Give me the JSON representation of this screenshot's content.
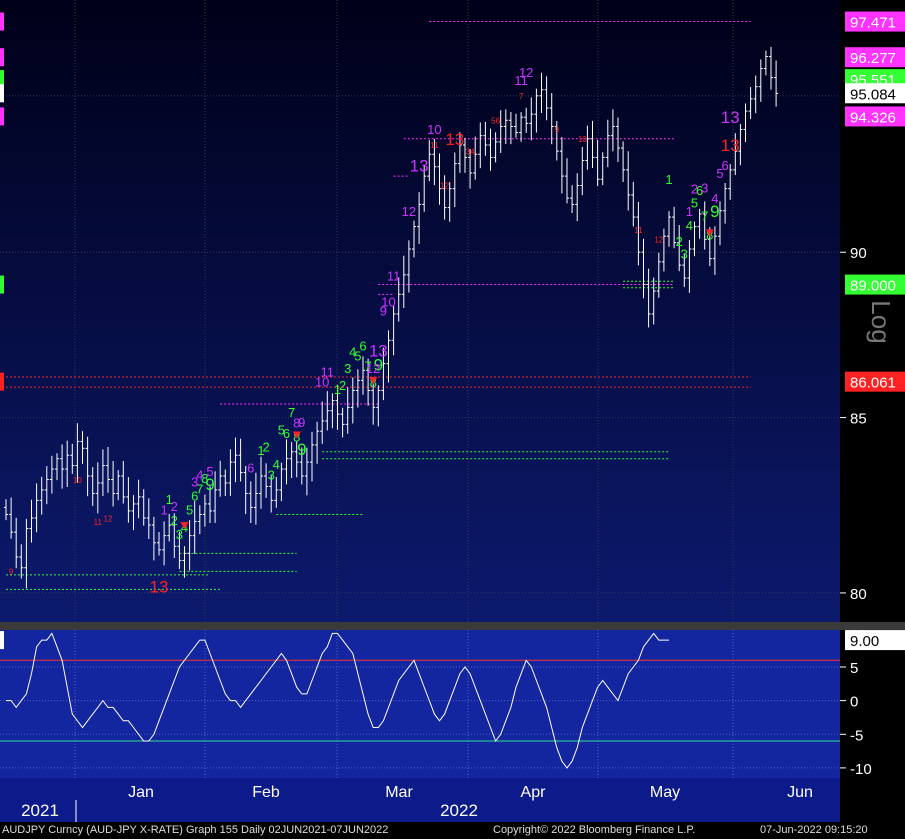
{
  "chart_data": {
    "type": "line",
    "price_panel": {
      "series_type": "candlestick",
      "y_ticks": [
        80,
        85,
        90
      ],
      "ylim": [
        79.2,
        98.2
      ],
      "axis_badges": [
        {
          "value": 97.471,
          "label": "97.471",
          "color": "#ff33ff"
        },
        {
          "value": 96.277,
          "label": "96.277",
          "color": "#ff33ff"
        },
        {
          "value": 95.551,
          "label": "95.551",
          "color": "#33ff33"
        },
        {
          "value": 95.084,
          "label": "95.084",
          "color": "#ffffff"
        },
        {
          "value": 94.326,
          "label": "94.326",
          "color": "#ff33ff"
        },
        {
          "value": 89.0,
          "label": "89.000",
          "color": "#33ff33"
        },
        {
          "value": 86.061,
          "label": "86.061",
          "color": "#ff2222"
        }
      ],
      "side_text": "Log",
      "closes": [
        82.2,
        81.7,
        81.0,
        80.7,
        81.8,
        82.1,
        82.6,
        82.9,
        83.2,
        83.5,
        83.8,
        83.5,
        83.9,
        83.6,
        84.3,
        84.1,
        83.3,
        82.8,
        83.1,
        83.6,
        83.2,
        82.8,
        83.3,
        82.7,
        82.3,
        82.5,
        82.7,
        82.1,
        81.9,
        81.4,
        81.2,
        81.6,
        81.9,
        81.3,
        80.9,
        81.1,
        81.6,
        82.0,
        82.2,
        82.5,
        82.3,
        82.9,
        83.3,
        83.1,
        83.7,
        83.9,
        83.4,
        82.8,
        82.4,
        82.8,
        83.3,
        83.0,
        82.6,
        82.9,
        83.5,
        83.8,
        84.0,
        83.7,
        83.3,
        83.7,
        84.2,
        84.6,
        84.9,
        85.2,
        85.5,
        85.1,
        84.8,
        85.3,
        85.8,
        86.1,
        86.4,
        85.8,
        85.3,
        85.8,
        86.6,
        87.3,
        88.1,
        88.7,
        89.3,
        90.1,
        90.8,
        91.5,
        92.4,
        93.1,
        92.7,
        92.0,
        91.4,
        92.0,
        92.8,
        93.4,
        93.0,
        92.5,
        93.1,
        93.7,
        93.4,
        93.0,
        93.5,
        94.0,
        94.2,
        94.0,
        93.8,
        94.3,
        94.1,
        94.4,
        95.0,
        95.2,
        94.6,
        94.0,
        93.2,
        92.4,
        91.7,
        91.5,
        92.1,
        92.9,
        93.6,
        93.0,
        92.3,
        93.0,
        93.7,
        94.0,
        93.3,
        92.6,
        91.8,
        91.1,
        90.0,
        89.0,
        88.1,
        88.8,
        89.7,
        90.5,
        91.1,
        90.3,
        89.6,
        89.2,
        90.1,
        90.8,
        91.2,
        90.4,
        89.8,
        90.5,
        91.3,
        92.0,
        92.6,
        93.2,
        93.9,
        94.5,
        94.9,
        95.3,
        95.9,
        96.3,
        95.6,
        95.08
      ],
      "labels": [
        {
          "i": 1,
          "text": "9",
          "color": "#ff2222",
          "size": 8,
          "pos": "below"
        },
        {
          "i": 14,
          "text": "10",
          "color": "#ff2222",
          "size": 8,
          "pos": "below"
        },
        {
          "i": 18,
          "text": "11",
          "color": "#ff2222",
          "size": 8,
          "pos": "below"
        },
        {
          "i": 20,
          "text": "12",
          "color": "#ff2222",
          "size": 8,
          "pos": "below"
        },
        {
          "i": 30,
          "text": "13",
          "color": "#ff2222",
          "size": 17,
          "pos": "below"
        },
        {
          "i": 32,
          "text": "1",
          "color": "#33ff33",
          "size": 13,
          "pos": "above"
        },
        {
          "i": 33,
          "text": "2",
          "color": "#33ff33",
          "size": 13,
          "pos": "above"
        },
        {
          "i": 34,
          "text": "3",
          "color": "#33ff33",
          "size": 13,
          "pos": "above"
        },
        {
          "i": 35,
          "text": "4",
          "color": "#33ff33",
          "size": 13,
          "pos": "above"
        },
        {
          "i": 36,
          "text": "5",
          "color": "#33ff33",
          "size": 13,
          "pos": "above"
        },
        {
          "i": 37,
          "text": "6",
          "color": "#33ff33",
          "size": 13,
          "pos": "above"
        },
        {
          "i": 38,
          "text": "7",
          "color": "#33ff33",
          "size": 13,
          "pos": "above"
        },
        {
          "i": 39,
          "text": "8",
          "color": "#33ff33",
          "size": 13,
          "pos": "above"
        },
        {
          "i": 40,
          "text": "9",
          "color": "#33ff33",
          "size": 17,
          "pos": "above"
        },
        {
          "i": 31,
          "text": "1",
          "color": "#cc33ff",
          "size": 13,
          "pos": "above"
        },
        {
          "i": 33,
          "text": "2",
          "color": "#cc33ff",
          "size": 13,
          "pos": "above2"
        },
        {
          "i": 37,
          "text": "3",
          "color": "#cc33ff",
          "size": 13,
          "pos": "above2"
        },
        {
          "i": 38,
          "text": "4",
          "color": "#cc33ff",
          "size": 13,
          "pos": "above2"
        },
        {
          "i": 40,
          "text": "5",
          "color": "#cc33ff",
          "size": 13,
          "pos": "above2"
        },
        {
          "i": 48,
          "text": "6",
          "color": "#cc33ff",
          "size": 13,
          "pos": "above2"
        },
        {
          "i": 50,
          "text": "1",
          "color": "#33ff33",
          "size": 13,
          "pos": "above"
        },
        {
          "i": 51,
          "text": "2",
          "color": "#33ff33",
          "size": 13,
          "pos": "above2"
        },
        {
          "i": 52,
          "text": "3",
          "color": "#33ff33",
          "size": 13,
          "pos": "above"
        },
        {
          "i": 53,
          "text": "4",
          "color": "#33ff33",
          "size": 13,
          "pos": "above"
        },
        {
          "i": 54,
          "text": "5",
          "color": "#33ff33",
          "size": 13,
          "pos": "above2"
        },
        {
          "i": 55,
          "text": "6",
          "color": "#33ff33",
          "size": 13,
          "pos": "above"
        },
        {
          "i": 56,
          "text": "7",
          "color": "#33ff33",
          "size": 13,
          "pos": "above2"
        },
        {
          "i": 57,
          "text": "8",
          "color": "#33ff33",
          "size": 13,
          "pos": "above"
        },
        {
          "i": 58,
          "text": "9",
          "color": "#33ff33",
          "size": 17,
          "pos": "above"
        },
        {
          "i": 57,
          "text": "8",
          "color": "#cc33ff",
          "size": 13,
          "pos": "above2"
        },
        {
          "i": 58,
          "text": "9",
          "color": "#cc33ff",
          "size": 13,
          "pos": "above3"
        },
        {
          "i": 62,
          "text": "10",
          "color": "#cc33ff",
          "size": 13,
          "pos": "above2"
        },
        {
          "i": 63,
          "text": "11",
          "color": "#cc33ff",
          "size": 13,
          "pos": "above2"
        },
        {
          "i": 65,
          "text": "1",
          "color": "#33ff33",
          "size": 13,
          "pos": "above"
        },
        {
          "i": 66,
          "text": "2",
          "color": "#33ff33",
          "size": 13,
          "pos": "above2"
        },
        {
          "i": 67,
          "text": "3",
          "color": "#33ff33",
          "size": 13,
          "pos": "above2"
        },
        {
          "i": 68,
          "text": "4",
          "color": "#33ff33",
          "size": 13,
          "pos": "above2"
        },
        {
          "i": 69,
          "text": "5",
          "color": "#33ff33",
          "size": 13,
          "pos": "above"
        },
        {
          "i": 70,
          "text": "6",
          "color": "#33ff33",
          "size": 13,
          "pos": "above"
        },
        {
          "i": 71,
          "text": "7",
          "color": "#33ff33",
          "size": 13,
          "pos": "above"
        },
        {
          "i": 72,
          "text": "8",
          "color": "#33ff33",
          "size": 13,
          "pos": "above"
        },
        {
          "i": 73,
          "text": "9",
          "color": "#33ff33",
          "size": 17,
          "pos": "above"
        },
        {
          "i": 72,
          "text": "12",
          "color": "#cc33ff",
          "size": 13,
          "pos": "above2"
        },
        {
          "i": 73,
          "text": "13",
          "color": "#cc33ff",
          "size": 17,
          "pos": "above2"
        },
        {
          "i": 74,
          "text": "9",
          "color": "#cc33ff",
          "size": 13,
          "pos": "above3"
        },
        {
          "i": 75,
          "text": "10",
          "color": "#cc33ff",
          "size": 13,
          "pos": "above2"
        },
        {
          "i": 76,
          "text": "11",
          "color": "#cc33ff",
          "size": 13,
          "pos": "above2"
        },
        {
          "i": 79,
          "text": "12",
          "color": "#cc33ff",
          "size": 13,
          "pos": "above2"
        },
        {
          "i": 81,
          "text": "13",
          "color": "#cc33ff",
          "size": 17,
          "pos": "above2"
        },
        {
          "i": 84,
          "text": "10",
          "color": "#cc33ff",
          "size": 13,
          "pos": "above2"
        },
        {
          "i": 84,
          "text": "11",
          "color": "#ff2222",
          "size": 8,
          "pos": "above"
        },
        {
          "i": 86,
          "text": "12",
          "color": "#ff2222",
          "size": 8,
          "pos": "above"
        },
        {
          "i": 88,
          "text": "13",
          "color": "#ff2222",
          "size": 17,
          "pos": "above"
        },
        {
          "i": 91,
          "text": "34",
          "color": "#ff2222",
          "size": 8,
          "pos": "above"
        },
        {
          "i": 96,
          "text": "56",
          "color": "#ff2222",
          "size": 8,
          "pos": "above"
        },
        {
          "i": 101,
          "text": "7",
          "color": "#ff2222",
          "size": 8,
          "pos": "above"
        },
        {
          "i": 101,
          "text": "11",
          "color": "#cc33ff",
          "size": 13,
          "pos": "above2"
        },
        {
          "i": 102,
          "text": "12",
          "color": "#cc33ff",
          "size": 13,
          "pos": "above3"
        },
        {
          "i": 108,
          "text": "9",
          "color": "#ff2222",
          "size": 8,
          "pos": "above"
        },
        {
          "i": 113,
          "text": "10",
          "color": "#ff2222",
          "size": 8,
          "pos": "above"
        },
        {
          "i": 124,
          "text": "11",
          "color": "#ff2222",
          "size": 8,
          "pos": "above"
        },
        {
          "i": 128,
          "text": "12",
          "color": "#ff2222",
          "size": 8,
          "pos": "above"
        },
        {
          "i": 130,
          "text": "1",
          "color": "#33ff33",
          "size": 13,
          "pos": "above2"
        },
        {
          "i": 132,
          "text": "2",
          "color": "#33ff33",
          "size": 13,
          "pos": "above"
        },
        {
          "i": 133,
          "text": "3",
          "color": "#33ff33",
          "size": 13,
          "pos": "above"
        },
        {
          "i": 134,
          "text": "4",
          "color": "#33ff33",
          "size": 13,
          "pos": "above"
        },
        {
          "i": 135,
          "text": "5",
          "color": "#33ff33",
          "size": 13,
          "pos": "above"
        },
        {
          "i": 136,
          "text": "6",
          "color": "#33ff33",
          "size": 13,
          "pos": "above"
        },
        {
          "i": 137,
          "text": "7",
          "color": "#33ff33",
          "size": 13,
          "pos": "above"
        },
        {
          "i": 138,
          "text": "8",
          "color": "#33ff33",
          "size": 13,
          "pos": "above"
        },
        {
          "i": 139,
          "text": "9",
          "color": "#33ff33",
          "size": 17,
          "pos": "above"
        },
        {
          "i": 134,
          "text": "1",
          "color": "#cc33ff",
          "size": 13,
          "pos": "above2"
        },
        {
          "i": 135,
          "text": "2",
          "color": "#cc33ff",
          "size": 13,
          "pos": "above2"
        },
        {
          "i": 137,
          "text": "3",
          "color": "#cc33ff",
          "size": 13,
          "pos": "above3"
        },
        {
          "i": 139,
          "text": "4",
          "color": "#cc33ff",
          "size": 13,
          "pos": "above2"
        },
        {
          "i": 140,
          "text": "5",
          "color": "#cc33ff",
          "size": 13,
          "pos": "above2"
        },
        {
          "i": 141,
          "text": "6",
          "color": "#cc33ff",
          "size": 13,
          "pos": "above"
        },
        {
          "i": 142,
          "text": "13",
          "color": "#ff2222",
          "size": 17,
          "pos": "above"
        },
        {
          "i": 142,
          "text": "13",
          "color": "#cc33ff",
          "size": 17,
          "pos": "above3"
        }
      ],
      "arrows": [
        35,
        57,
        72,
        138
      ],
      "support_lines": [
        {
          "value": 80.5,
          "i0": 0,
          "i1": 40,
          "color": "#33ff33"
        },
        {
          "value": 80.1,
          "i0": 0,
          "i1": 42,
          "color": "#33ff33"
        },
        {
          "value": 81.1,
          "i0": 34,
          "i1": 57,
          "color": "#33ff33"
        },
        {
          "value": 80.6,
          "i0": 34,
          "i1": 57,
          "color": "#33ff33"
        },
        {
          "value": 82.2,
          "i0": 53,
          "i1": 70,
          "color": "#33ff33"
        },
        {
          "value": 84.0,
          "i0": 62,
          "i1": 130,
          "color": "#33ff33"
        },
        {
          "value": 83.8,
          "i0": 62,
          "i1": 130,
          "color": "#33ff33"
        },
        {
          "value": 89.1,
          "i0": 121,
          "i1": 131,
          "color": "#33ff33"
        },
        {
          "value": 88.9,
          "i0": 121,
          "i1": 131,
          "color": "#33ff33"
        },
        {
          "value": 85.4,
          "i0": 42,
          "i1": 73,
          "color": "#ff33ff"
        },
        {
          "value": 88.7,
          "i0": 73,
          "i1": 76,
          "color": "#ff33ff"
        },
        {
          "value": 89.0,
          "i0": 73,
          "i1": 131,
          "color": "#ff33ff"
        },
        {
          "value": 92.4,
          "i0": 76,
          "i1": 79,
          "color": "#ff33ff"
        },
        {
          "value": 93.6,
          "i0": 78,
          "i1": 131,
          "color": "#ff33ff"
        },
        {
          "value": 97.471,
          "i0": 83,
          "i1": 146,
          "color": "#ff33ff"
        },
        {
          "value": 86.2,
          "i0": 0,
          "i1": 146,
          "color": "#ff2222"
        },
        {
          "value": 85.9,
          "i0": 0,
          "i1": 146,
          "color": "#ff2222"
        }
      ]
    },
    "oscillator_panel": {
      "y_ticks": [
        5,
        0,
        -5,
        -10
      ],
      "top_tick_partial": "10",
      "ylim": [
        -11.5,
        10.5
      ],
      "upper_level": 6,
      "lower_level": -6,
      "current_label": "9.00",
      "values": [
        0,
        0,
        -1,
        0,
        1,
        4,
        8,
        9,
        9,
        10,
        8,
        6,
        2,
        -2,
        -3,
        -4,
        -3,
        -2,
        -1,
        0,
        -1,
        -1,
        -2,
        -3,
        -3,
        -4,
        -5,
        -6,
        -6,
        -5,
        -3,
        -1,
        1,
        3,
        5,
        6,
        7,
        8,
        9,
        9,
        7,
        5,
        3,
        1,
        0,
        0,
        -1,
        0,
        1,
        2,
        3,
        4,
        5,
        6,
        7,
        6,
        4,
        2,
        1,
        1,
        3,
        5,
        7,
        8,
        10,
        10,
        9,
        8,
        7,
        4,
        1,
        -2,
        -4,
        -4,
        -3,
        -1,
        1,
        3,
        4,
        5,
        6,
        4,
        2,
        0,
        -2,
        -3,
        -2,
        0,
        2,
        4,
        5,
        4,
        2,
        0,
        -2,
        -4,
        -6,
        -5,
        -3,
        -1,
        2,
        4,
        6,
        5,
        3,
        1,
        -1,
        -4,
        -7,
        -9,
        -10,
        -9,
        -7,
        -4,
        -2,
        0,
        2,
        3,
        2,
        1,
        0,
        2,
        4,
        5,
        6,
        8,
        9,
        10,
        9,
        9,
        9
      ]
    },
    "x_axis": {
      "month_labels": [
        {
          "text": "Jan",
          "i": 32
        },
        {
          "text": "Feb",
          "i": 63
        },
        {
          "text": "Mar",
          "i": 94
        },
        {
          "text": "Apr",
          "i": 125
        },
        {
          "text": "May",
          "i": 155
        },
        {
          "text": "Jun",
          "i": 186
        }
      ],
      "year_labels": [
        {
          "text": "2021",
          "i": 8
        },
        {
          "text": "2022",
          "i": 104
        }
      ]
    },
    "colors": {
      "price_bg_top": "#000018",
      "price_bg_bottom": "#0c1a6e",
      "osc_bg": "#13269f",
      "oscillator_line": "#ffffff",
      "upper_level_line": "#ff3030",
      "lower_level_line": "#28e090"
    }
  },
  "footer": {
    "left": "AUDJPY Curncy (AUD-JPY X-RATE) Graph 155  Daily 02JUN2021-07JUN2022",
    "center": "Copyright© 2022 Bloomberg Finance L.P.",
    "right": "07-Jun-2022 09:15:20"
  }
}
